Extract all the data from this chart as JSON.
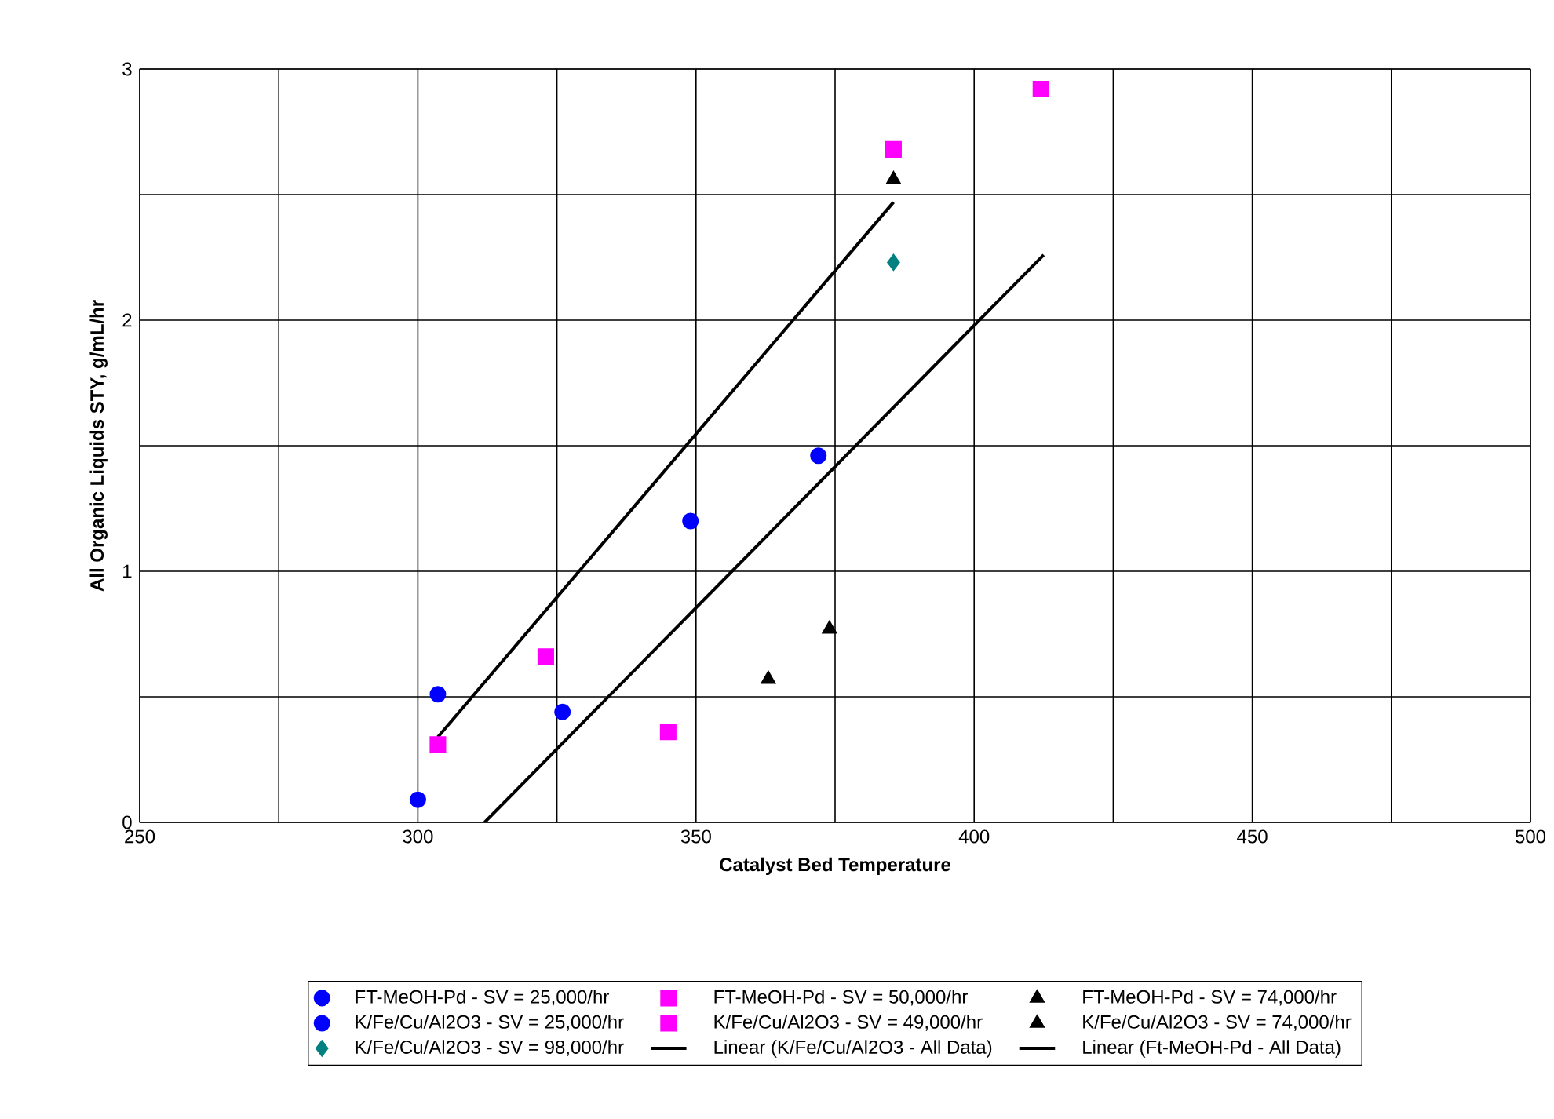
{
  "chart_data": {
    "type": "scatter",
    "xlabel": "Catalyst Bed Temperature",
    "ylabel": "All Organic Liquids STY, g/mL/hr",
    "xlim": [
      250,
      500
    ],
    "ylim": [
      0,
      3
    ],
    "xticks": [
      250,
      {
        "value": 275,
        "label": null
      },
      300,
      {
        "value": 325,
        "label": null
      },
      350,
      {
        "value": 375,
        "label": null
      },
      400,
      {
        "value": 425,
        "label": null
      },
      450,
      {
        "value": 475,
        "label": null
      },
      500
    ],
    "yticks": [
      0,
      {
        "value": 0.5,
        "label": null
      },
      1,
      {
        "value": 1.5,
        "label": null
      },
      2,
      {
        "value": 2.5,
        "label": null
      },
      3
    ],
    "grid": true,
    "legend": "bottom",
    "series": [
      {
        "name": "FT-MeOH-Pd - SV = 25,000/hr",
        "color": "#0000ff",
        "marker": "circle",
        "x": [
          300,
          326,
          349,
          372
        ],
        "values": [
          0.09,
          0.44,
          1.2,
          1.46
        ]
      },
      {
        "name": "FT-MeOH-Pd - SV = 50,000/hr",
        "color": "#ff00ff",
        "marker": "square",
        "x": [
          345,
          412
        ],
        "values": [
          0.36,
          2.92
        ]
      },
      {
        "name": "FT-MeOH-Pd - SV = 74,000/hr",
        "color": "#000000",
        "marker": "triangle",
        "x": [
          363,
          374
        ],
        "values": [
          0.57,
          0.77
        ]
      },
      {
        "name": "K/Fe/Cu/Al2O3 - SV = 25,000/hr",
        "color": "#0000ff",
        "marker": "circle",
        "x": [
          303.6
        ],
        "values": [
          0.51
        ]
      },
      {
        "name": "K/Fe/Cu/Al2O3 - SV = 49,000/hr",
        "color": "#ff00ff",
        "marker": "square",
        "x": [
          303.6,
          323,
          385.5
        ],
        "values": [
          0.31,
          0.66,
          2.68
        ]
      },
      {
        "name": "K/Fe/Cu/Al2O3 - SV = 74,000/hr",
        "color": "#000000",
        "marker": "triangle",
        "x": [
          385.5
        ],
        "values": [
          2.56
        ]
      },
      {
        "name": "K/Fe/Cu/Al2O3 - SV = 98,000/hr",
        "color": "#008080",
        "marker": "diamond",
        "x": [
          385.5
        ],
        "values": [
          2.23
        ]
      },
      {
        "name": "Linear (K/Fe/Cu/Al2O3 - All Data)",
        "type": "line",
        "color": "#000000",
        "marker": "none",
        "x": [
          303.6,
          385.5
        ],
        "values": [
          0.34,
          2.47
        ]
      },
      {
        "name": "Linear (Ft-MeOH-Pd - All Data)",
        "type": "line",
        "color": "#000000",
        "marker": "none",
        "x": [
          312,
          412.5
        ],
        "values": [
          0,
          2.26
        ]
      }
    ]
  }
}
